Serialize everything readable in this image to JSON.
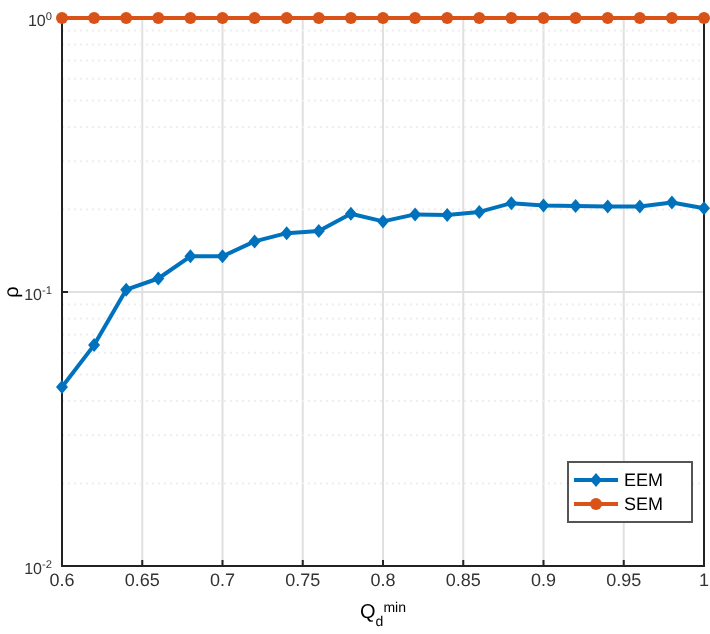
{
  "chart_data": {
    "type": "line",
    "xlabel": "Q$_{d}$$^{min}$",
    "ylabel": "ρ",
    "log": "y",
    "grid": true,
    "legend": "bottom right",
    "x": [
      0.6,
      0.62,
      0.64,
      0.66,
      0.68,
      0.7,
      0.72,
      0.74,
      0.76,
      0.78,
      0.8,
      0.82,
      0.84,
      0.86,
      0.88,
      0.9,
      0.92,
      0.94,
      0.96,
      0.98,
      1.0
    ],
    "xlim": [
      0.6,
      1
    ],
    "xticks": [
      0.6,
      0.65,
      0.7,
      0.75,
      0.8,
      0.85,
      0.9,
      0.95,
      1
    ],
    "ylim": [
      0.01,
      1
    ],
    "yticks": [
      {
        "value": 0.01,
        "label": "10$^{-2}$"
      },
      {
        "value": 0.1,
        "label": "10$^{-1}$"
      },
      {
        "value": 1,
        "label": "10$^{0}$"
      }
    ],
    "series": [
      {
        "name": "EEM",
        "color": "#0072bd",
        "marker": "diamond",
        "values": [
          0.045,
          0.064,
          0.102,
          0.112,
          0.135,
          0.135,
          0.153,
          0.164,
          0.167,
          0.193,
          0.181,
          0.192,
          0.191,
          0.196,
          0.211,
          0.207,
          0.206,
          0.205,
          0.205,
          0.212,
          0.202
        ]
      },
      {
        "name": "SEM",
        "color": "#d95319",
        "marker": "circle",
        "values": [
          1,
          1,
          1,
          1,
          1,
          1,
          1,
          1,
          1,
          1,
          1,
          1,
          1,
          1,
          1,
          1,
          1,
          1,
          1,
          1,
          1
        ]
      }
    ]
  }
}
